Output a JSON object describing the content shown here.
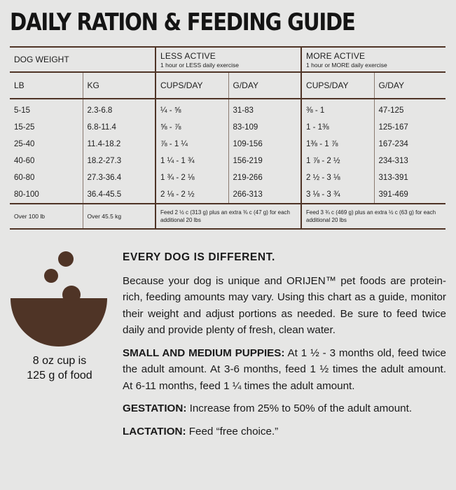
{
  "title": "DAILY RATION & FEEDING GUIDE",
  "table": {
    "dog_weight_label": "DOG WEIGHT",
    "less_active": {
      "title": "LESS ACTIVE",
      "subtitle": "1 hour or LESS daily exercise"
    },
    "more_active": {
      "title": "MORE ACTIVE",
      "subtitle": "1 hour or MORE daily exercise"
    },
    "columns": [
      "LB",
      "KG",
      "CUPS/DAY",
      "G/DAY",
      "CUPS/DAY",
      "G/DAY"
    ],
    "rows": [
      [
        "5-15",
        "2.3-6.8",
        "¼ - ⅝",
        "31-83",
        "⅜ - 1",
        "47-125"
      ],
      [
        "15-25",
        "6.8-11.4",
        "⅝ - ⅞",
        "83-109",
        "1 - 1⅜",
        "125-167"
      ],
      [
        "25-40",
        "11.4-18.2",
        "⅞ - 1 ¼",
        "109-156",
        "1⅜ - 1 ⅞",
        "167-234"
      ],
      [
        "40-60",
        "18.2-27.3",
        "1 ¼ - 1 ¾",
        "156-219",
        "1 ⅞ - 2 ½",
        "234-313"
      ],
      [
        "60-80",
        "27.3-36.4",
        "1 ¾ - 2 ⅛",
        "219-266",
        "2 ½ - 3 ⅛",
        "313-391"
      ],
      [
        "80-100",
        "36.4-45.5",
        "2 ⅛ - 2 ½",
        "266-313",
        "3 ⅛ - 3 ¾",
        "391-469"
      ]
    ],
    "extra_row": {
      "lb": "Over 100 lb",
      "kg": "Over 45.5 kg",
      "less_note": "Feed 2 ½ c (313 g) plus an extra ⅜ c (47 g) for each additional 20 lbs",
      "more_note": "Feed 3 ¾ c (469 g) plus an extra ½ c (63 g) for each additional 20 lbs"
    }
  },
  "cup_caption": {
    "line1": "8 oz cup is",
    "line2": "125 g of food"
  },
  "icon": "food-bowl-icon",
  "colors": {
    "brown": "#4f3426",
    "background": "#e6e6e5"
  },
  "info": {
    "heading": "EVERY DOG IS DIFFERENT.",
    "intro": "Because your dog is unique and ORIJEN™ pet foods are protein-rich, feeding amounts may vary. Using this chart as a guide, monitor their weight and adjust portions as needed. Be sure to feed twice daily and provide plenty of fresh, clean water.",
    "puppies_label": "SMALL AND MEDIUM PUPPIES:",
    "puppies_text": " At 1 ½ - 3 months old, feed twice the adult amount. At 3-6 months, feed 1 ½ times the adult amount. At 6-11 months, feed 1 ¼ times the adult amount.",
    "gestation_label": "GESTATION:",
    "gestation_text": " Increase from 25% to 50% of the adult amount.",
    "lactation_label": "LACTATION:",
    "lactation_text": " Feed “free choice.”"
  }
}
